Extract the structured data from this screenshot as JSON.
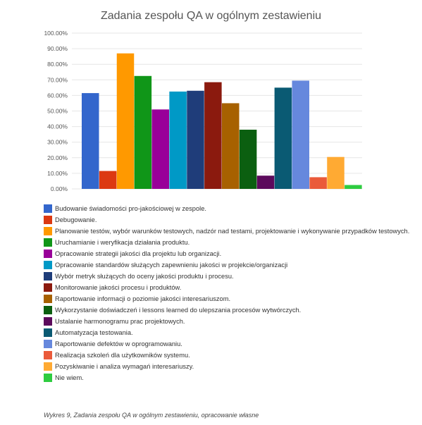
{
  "chart_data": {
    "type": "bar",
    "title": "Zadania zespołu QA w ogólnym zestawieniu",
    "ylim": [
      0,
      100
    ],
    "yticks": [
      "0.00%",
      "10.00%",
      "20.00%",
      "30.00%",
      "40.00%",
      "50.00%",
      "60.00%",
      "70.00%",
      "80.00%",
      "90.00%",
      "100.00%"
    ],
    "grid": true,
    "legend_position": "bottom",
    "series": [
      {
        "name": "Budowanie świadomości pro-jakościowej w zespole.",
        "value": 61.5,
        "color": "#3366cc"
      },
      {
        "name": "Debugowanie.",
        "value": 11.5,
        "color": "#dc3912"
      },
      {
        "name": "Planowanie testów, wybór warunków testowych, nadzór nad testami, projektowanie i wykonywanie przypadków testowych.",
        "value": 87.0,
        "color": "#ff9900"
      },
      {
        "name": "Uruchamianie i weryfikacja działania produktu.",
        "value": 72.5,
        "color": "#109618"
      },
      {
        "name": "Opracowanie strategii jakości dla projektu lub organizacji.",
        "value": 51.0,
        "color": "#990099"
      },
      {
        "name": "Opracowanie standardów służących zapewnieniu jakości w projekcie/organizacji",
        "value": 62.5,
        "color": "#0099c6"
      },
      {
        "name": "Wybór metryk służących do oceny jakości produktu i procesu.",
        "value": 63.0,
        "color": "#1f3d7a"
      },
      {
        "name": "Monitorowanie jakości procesu i produktów.",
        "value": 68.5,
        "color": "#8b1a0e"
      },
      {
        "name": "Raportowanie informacji o poziomie jakości interesariuszom.",
        "value": 55.0,
        "color": "#a76100"
      },
      {
        "name": "Wykorzystanie doświadczeń i lessons learned do ulepszania procesów wytwórczych.",
        "value": 38.0,
        "color": "#0b5f10"
      },
      {
        "name": "Ustalanie harmonogramu prac projektowych.",
        "value": 8.5,
        "color": "#5c0a5c"
      },
      {
        "name": "Automatyzacja testowania.",
        "value": 65.0,
        "color": "#0a5a73"
      },
      {
        "name": "Raportowanie defektów w oprogramowaniu.",
        "value": 69.5,
        "color": "#6688dd"
      },
      {
        "name": "Realizacja szkoleń dla użytkowników systemu.",
        "value": 7.5,
        "color": "#ea5a3a"
      },
      {
        "name": "Pozyskiwanie i analiza wymagań interesariuszy.",
        "value": 20.5,
        "color": "#ffaa33"
      },
      {
        "name": "Nie wiem.",
        "value": 2.5,
        "color": "#2ecc40"
      }
    ]
  },
  "caption": "Wykres 9, Zadania zespołu QA w ogólnym zestawieniu, opracowanie własne"
}
